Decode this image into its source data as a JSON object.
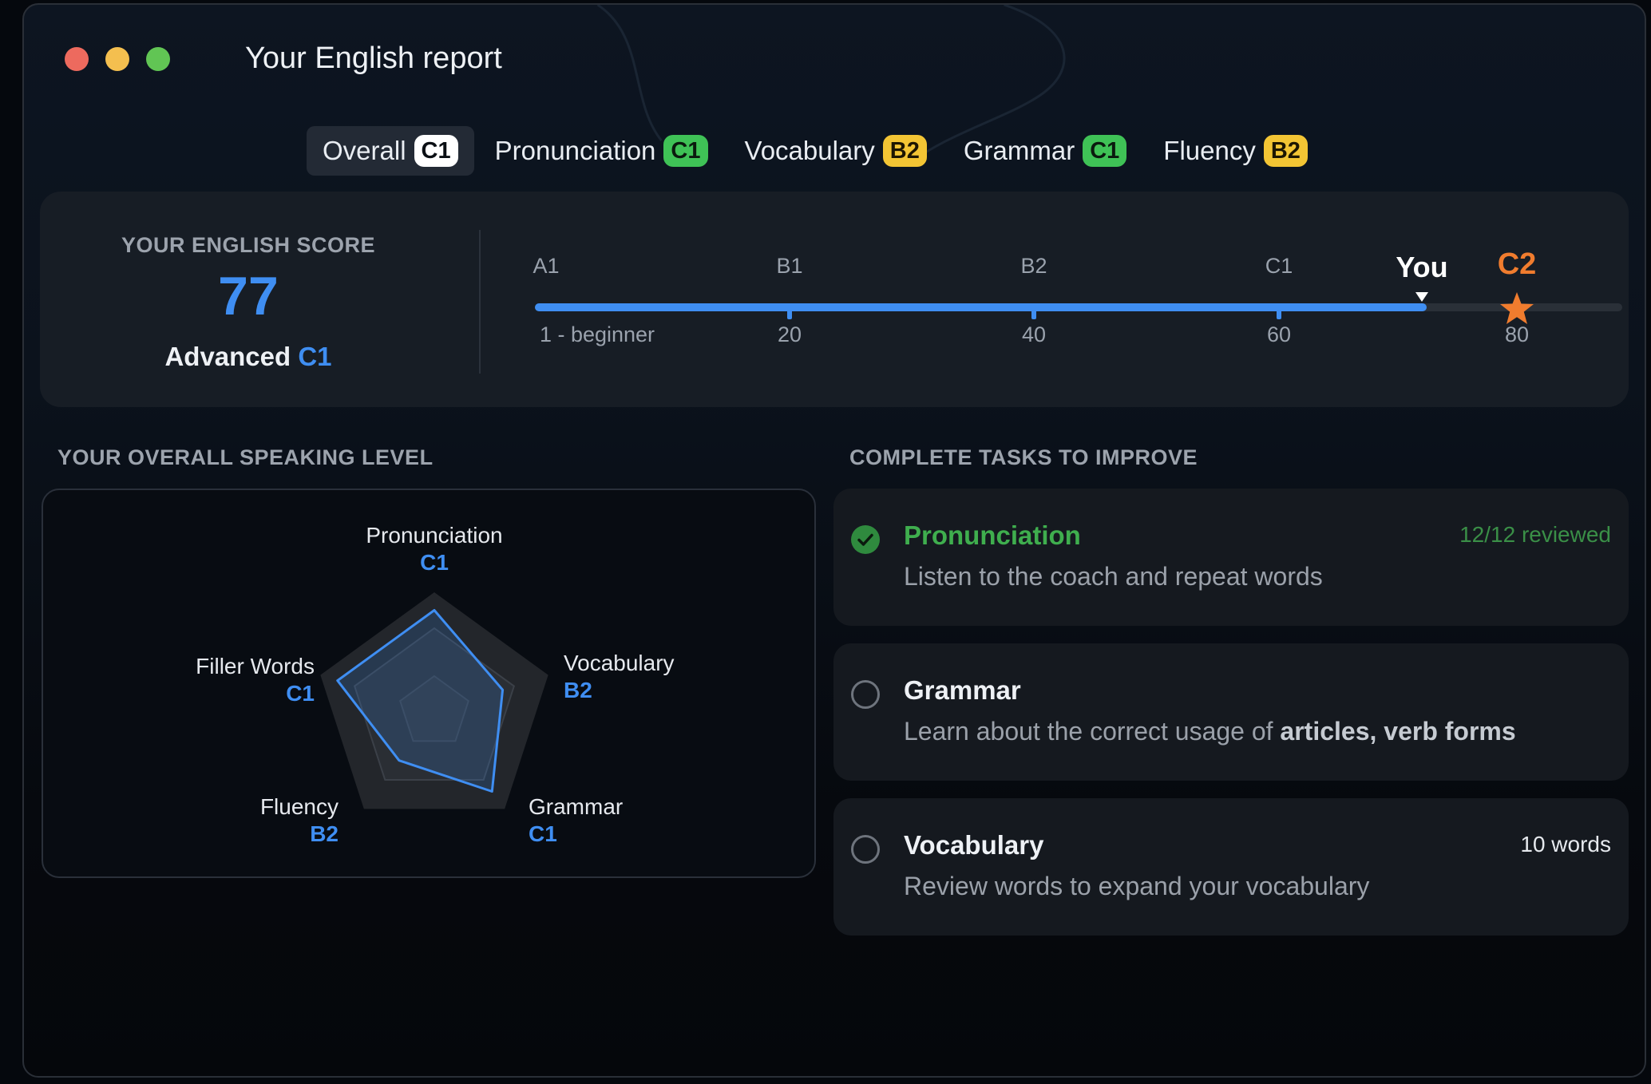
{
  "window": {
    "title": "Your English report"
  },
  "tabs": [
    {
      "label": "Overall",
      "level": "C1",
      "active": true
    },
    {
      "label": "Pronunciation",
      "level": "C1"
    },
    {
      "label": "Vocabulary",
      "level": "B2"
    },
    {
      "label": "Grammar",
      "level": "C1"
    },
    {
      "label": "Fluency",
      "level": "B2"
    }
  ],
  "score": {
    "caption": "YOUR ENGLISH SCORE",
    "value": "77",
    "level_text": "Advanced",
    "level": "C1"
  },
  "scale": {
    "levels": [
      "A1",
      "B1",
      "B2",
      "C1"
    ],
    "numbers": [
      "1 - beginner",
      "20",
      "40",
      "60",
      "80"
    ],
    "you_label": "You",
    "target_level": "C2",
    "progress": 0.82
  },
  "speaking": {
    "heading": "YOUR OVERALL SPEAKING LEVEL",
    "axes": [
      {
        "name": "Pronunciation",
        "level": "C1",
        "value": 0.85
      },
      {
        "name": "Vocabulary",
        "level": "B2",
        "value": 0.6
      },
      {
        "name": "Grammar",
        "level": "C1",
        "value": 0.82
      },
      {
        "name": "Fluency",
        "level": "B2",
        "value": 0.5
      },
      {
        "name": "Filler Words",
        "level": "C1",
        "value": 0.85
      }
    ]
  },
  "tasks": {
    "heading": "COMPLETE TASKS TO IMPROVE",
    "items": [
      {
        "title": "Pronunciation",
        "desc": "Listen to the coach and repeat words",
        "meta": "12/12 reviewed",
        "done": true
      },
      {
        "title": "Grammar",
        "desc_prefix": "Learn about the correct usage of ",
        "desc_bold": "articles, verb forms",
        "meta": "",
        "done": false
      },
      {
        "title": "Vocabulary",
        "desc": "Review words to expand your vocabulary",
        "meta": "10 words",
        "done": false
      }
    ]
  },
  "colors": {
    "accent": "#3f8ef2",
    "target": "#f07c2e",
    "success": "#3fae4e"
  }
}
